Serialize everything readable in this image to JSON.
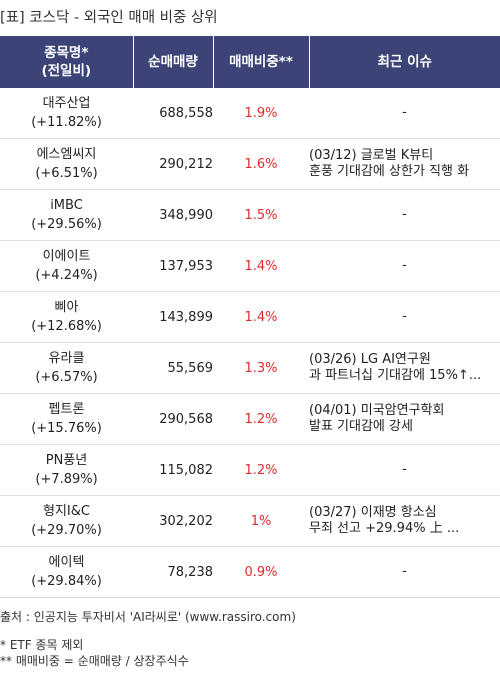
{
  "title": "[표] 코스닥 - 외국인 매매 비중 상위",
  "columns": {
    "name_line1": "종목명*",
    "name_line2": "(전일비)",
    "volume": "순매매량",
    "ratio": "매매비중**",
    "issue": "최근 이슈"
  },
  "rows": [
    {
      "name": "대주산업",
      "change": "(+11.82%)",
      "volume": "688,558",
      "ratio": "1.9%",
      "issue1": "-",
      "issue2": ""
    },
    {
      "name": "에스엠씨지",
      "change": "(+6.51%)",
      "volume": "290,212",
      "ratio": "1.6%",
      "issue1": "(03/12) 글로벌 K뷰티",
      "issue2": "훈풍 기대감에 상한가 직행 화"
    },
    {
      "name": "iMBC",
      "change": "(+29.56%)",
      "volume": "348,990",
      "ratio": "1.5%",
      "issue1": "-",
      "issue2": ""
    },
    {
      "name": "이에이트",
      "change": "(+4.24%)",
      "volume": "137,953",
      "ratio": "1.4%",
      "issue1": "-",
      "issue2": ""
    },
    {
      "name": "삐아",
      "change": "(+12.68%)",
      "volume": "143,899",
      "ratio": "1.4%",
      "issue1": "-",
      "issue2": ""
    },
    {
      "name": "유라클",
      "change": "(+6.57%)",
      "volume": "55,569",
      "ratio": "1.3%",
      "issue1": "(03/26) LG AI연구원",
      "issue2": "과 파트너십 기대감에 15%↑..."
    },
    {
      "name": "펩트론",
      "change": "(+15.76%)",
      "volume": "290,568",
      "ratio": "1.2%",
      "issue1": "(04/01) 미국암연구학회",
      "issue2": "발표 기대감에 강세"
    },
    {
      "name": "PN풍년",
      "change": "(+7.89%)",
      "volume": "115,082",
      "ratio": "1.2%",
      "issue1": "-",
      "issue2": ""
    },
    {
      "name": "형지I&C",
      "change": "(+29.70%)",
      "volume": "302,202",
      "ratio": "1%",
      "issue1": "(03/27) 이재명 항소심",
      "issue2": "무죄 선고 +29.94% 上 ..."
    },
    {
      "name": "에이텍",
      "change": "(+29.84%)",
      "volume": "78,238",
      "ratio": "0.9%",
      "issue1": "-",
      "issue2": ""
    }
  ],
  "footer": {
    "source": "출처 : 인공지능 투자비서 'AI라씨로' (www.rassiro.com)",
    "note1": "* ETF 종목 제외",
    "note2": "** 매매비중 = 순매매량 / 상장주식수"
  },
  "colors": {
    "header_bg": "#3c4477",
    "ratio_text": "#e02b2b"
  }
}
